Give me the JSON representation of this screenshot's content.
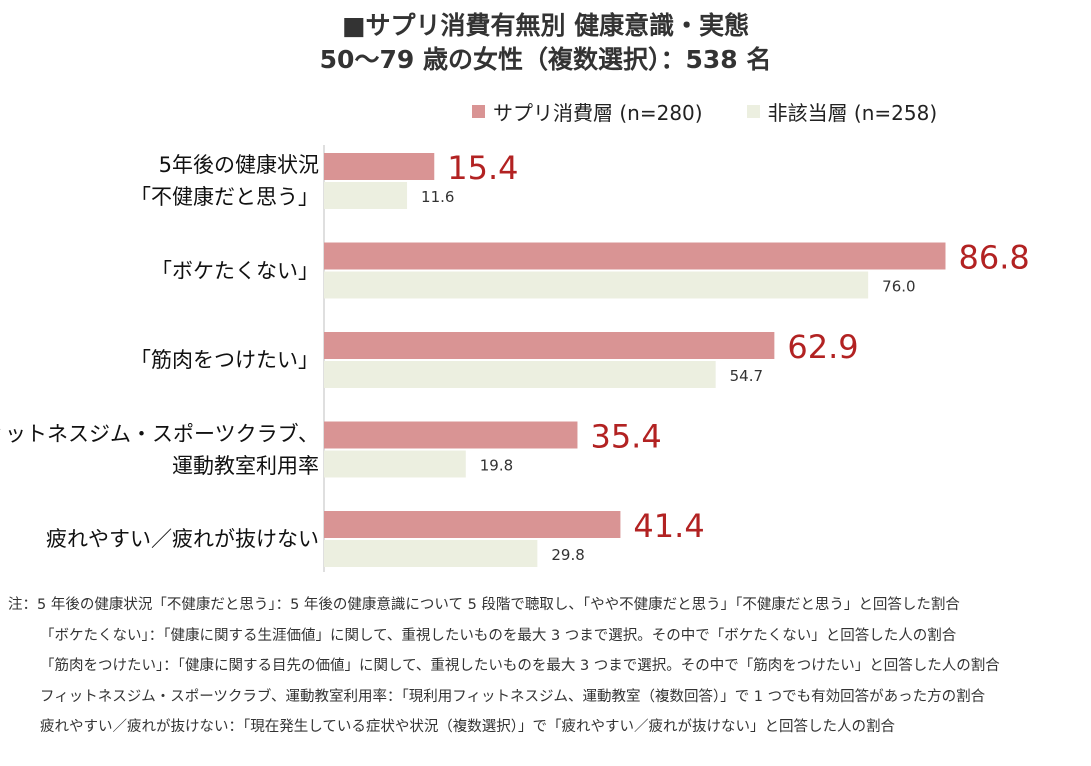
{
  "chart_data": {
    "type": "bar",
    "orientation": "horizontal",
    "title": "■サプリ消費有無別 健康意識・実態",
    "subtitle": "50～79 歳の女性（複数選択）：538 名",
    "categories": [
      [
        "5年後の健康状況",
        "「不健康だと思う」"
      ],
      [
        "「ボケたくない」"
      ],
      [
        "「筋肉をつけたい」"
      ],
      [
        "フィットネスジム・スポーツクラブ、",
        "運動教室利用率"
      ],
      [
        "疲れやすい／疲れが抜けない"
      ]
    ],
    "series": [
      {
        "name": "サプリ消費層 (n=280)",
        "values": [
          15.4,
          86.8,
          62.9,
          35.4,
          41.4
        ],
        "color": "#d99494",
        "label_color": "#b22222"
      },
      {
        "name": "非該当層 (n=258)",
        "values": [
          11.6,
          76.0,
          54.7,
          19.8,
          29.8
        ],
        "color": "#ecefe0",
        "label_color": "#333333"
      }
    ],
    "value_labels": [
      [
        "15.4",
        "86.8",
        "62.9",
        "35.4",
        "41.4"
      ],
      [
        "11.6",
        "76.0",
        "54.7",
        "19.8",
        "29.8"
      ]
    ],
    "xlim": [
      0,
      100
    ],
    "legend_position": "top",
    "grid": false
  },
  "notes": [
    "注：5 年後の健康状況「不健康だと思う」：5 年後の健康意識について 5 段階で聴取し、「やや不健康だと思う」「不健康だと思う」と回答した割合",
    "「ボケたくない」：「健康に関する生涯価値」に関して、重視したいものを最大 3 つまで選択。その中で「ボケたくない」と回答した人の割合",
    "「筋肉をつけたい」：「健康に関する目先の価値」に関して、重視したいものを最大 3 つまで選択。その中で「筋肉をつけたい」と回答した人の割合",
    "フィットネスジム・スポーツクラブ、運動教室利用率：「現利用フィットネスジム、運動教室（複数回答）」で 1 つでも有効回答があった方の割合",
    "疲れやすい／疲れが抜けない：「現在発生している症状や状況（複数選択）」で「疲れやすい／疲れが抜けない」と回答した人の割合"
  ]
}
